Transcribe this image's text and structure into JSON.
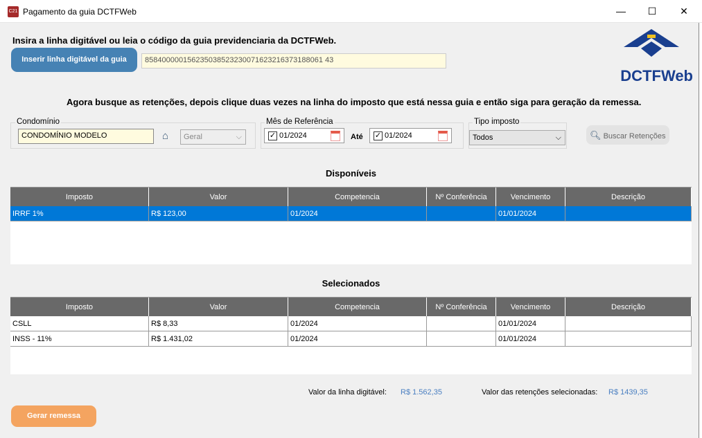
{
  "window": {
    "title": "Pagamento da guia DCTFWeb",
    "icon": "C21",
    "minimize": "—",
    "maximize": "☐",
    "close": "✕"
  },
  "intro": "Insira a linha digitável ou leia o código da guia previdenciaria da DCTFWeb.",
  "insert_button": "Inserir linha digitável da guia",
  "linha_digitavel": "858400000156235038523230071623216373188061 43",
  "logo": {
    "text": "DCTFWeb",
    "color": "#1a3f8f"
  },
  "instruction": "Agora busque as retenções, depois clique duas vezes na linha do imposto que está nessa guia e então siga para geração da remessa.",
  "filters": {
    "condominio_label": "Condomínio",
    "condominio_value": "CONDOMÍNIO MODELO",
    "bloco_value": "Geral",
    "mes_label": "Mês de Referência",
    "de": "01/2024",
    "ate_label": "Até",
    "ate": "01/2024",
    "tipo_label": "Tipo imposto",
    "tipo_value": "Todos",
    "buscar": "Buscar Retenções"
  },
  "columns": [
    "Imposto",
    "Valor",
    "Competencia",
    "Nº Conferência",
    "Vencimento",
    "Descrição"
  ],
  "disponiveis": {
    "title": "Disponíveis",
    "rows": [
      [
        "IRRF 1%",
        "R$ 123,00",
        "01/2024",
        "",
        "01/01/2024",
        ""
      ]
    ]
  },
  "selecionados": {
    "title": "Selecionados",
    "rows": [
      [
        "CSLL",
        "R$ 8,33",
        "01/2024",
        "",
        "01/01/2024",
        ""
      ],
      [
        "INSS - 11%",
        "R$ 1.431,02",
        "01/2024",
        "",
        "01/01/2024",
        ""
      ]
    ]
  },
  "totals": {
    "linha_label": "Valor da linha digitável:",
    "linha_value": "R$ 1.562,35",
    "ret_label": "Valor das retenções selecionadas:",
    "ret_value": "R$ 1439,35"
  },
  "gerar": "Gerar remessa",
  "colors": {
    "accent_blue": "#4682b4",
    "selected_row": "#0078d7",
    "orange": "#f4a460",
    "header": "#696969"
  }
}
